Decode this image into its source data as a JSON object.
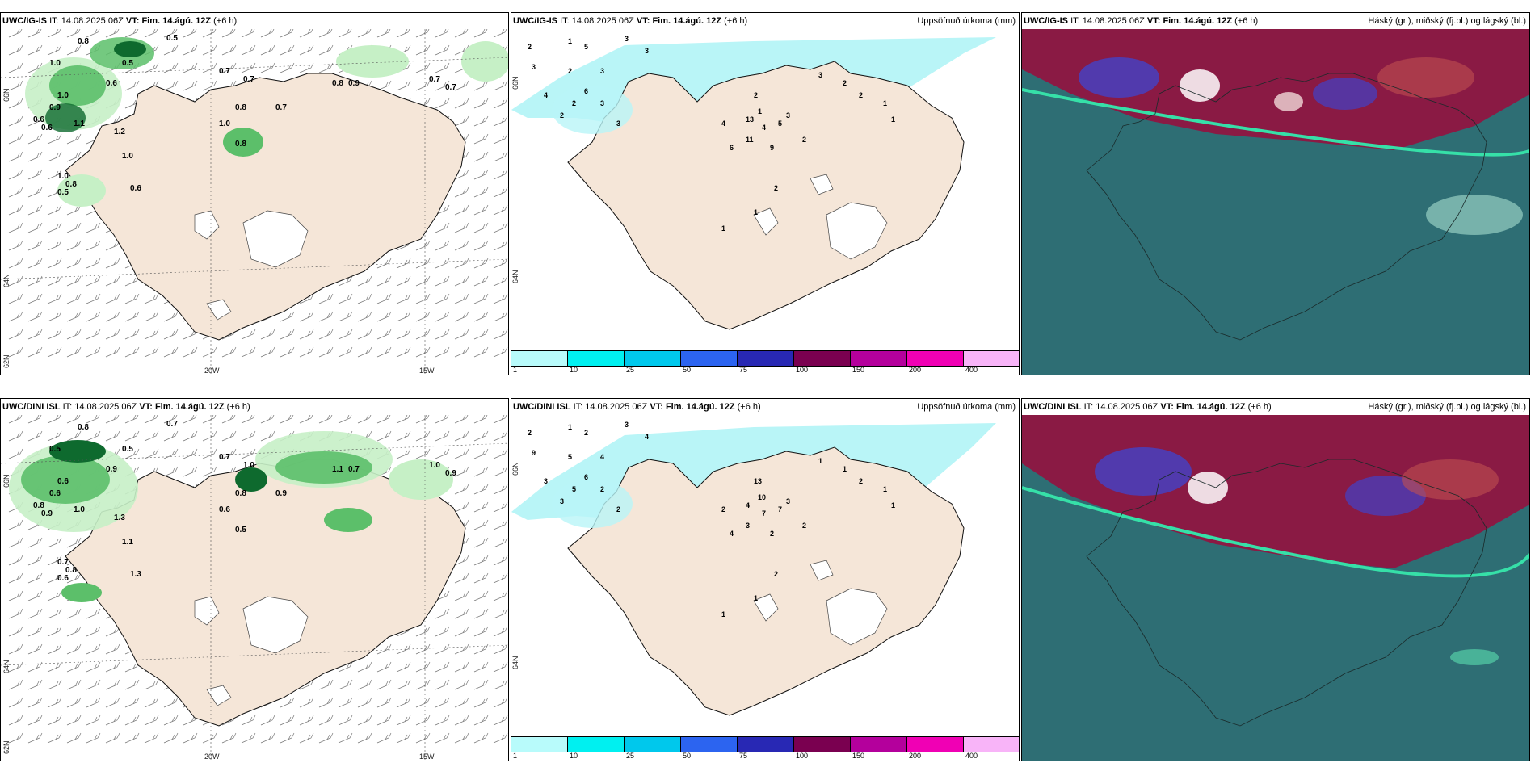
{
  "panels": {
    "p1": {
      "model": "UWC/IG-IS",
      "it_label": "IT:",
      "it": "14.08.2025 06Z",
      "vt_label": "VT:",
      "vt": "Fim. 14.ágú. 12Z",
      "lead": "(+6 h)",
      "lat1": "66N",
      "lat2": "64N",
      "lat3": "62N",
      "lon1": "20W",
      "lon2": "15W",
      "precip_labels": [
        "0.8",
        "0.5",
        "1.0",
        "0.5",
        "0.6",
        "0.7",
        "1.0",
        "0.7",
        "0.9",
        "0.8",
        "0.9",
        "0.6",
        "0.6",
        "1.1",
        "1.2",
        "0.8",
        "1.0",
        "0.7",
        "0.8",
        "1.0",
        "1.0",
        "0.8",
        "0.5",
        "0.6",
        "0.7",
        "0.7"
      ]
    },
    "p2": {
      "model": "UWC/IG-IS",
      "it_label": "IT:",
      "it": "14.08.2025 06Z",
      "vt_label": "VT:",
      "vt": "Fim. 14.ágú. 12Z",
      "lead": "(+6 h)",
      "right_title": "Uppsöfnuð úrkoma (mm)",
      "lat1": "66N",
      "lat2": "64N",
      "accum_labels": [
        "2",
        "1",
        "5",
        "3",
        "3",
        "2",
        "3",
        "4",
        "6",
        "2",
        "2",
        "3",
        "3",
        "3",
        "2",
        "1",
        "13",
        "4",
        "5",
        "3",
        "4",
        "11",
        "9",
        "6",
        "3",
        "2",
        "2",
        "1",
        "1",
        "2",
        "2",
        "1",
        "1"
      ]
    },
    "p3": {
      "model": "UWC/IG-IS",
      "it_label": "IT:",
      "it": "14.08.2025 06Z",
      "vt_label": "VT:",
      "vt": "Fim. 14.ágú. 12Z",
      "lead": "(+6 h)",
      "right_title": "Háský (gr.), miðský (fj.bl.) og lágský (bl.)"
    },
    "p4": {
      "model": "UWC/DINI ISL",
      "it_label": "IT:",
      "it": "14.08.2025 06Z",
      "vt_label": "VT:",
      "vt": "Fim. 14.ágú. 12Z",
      "lead": "(+6 h)",
      "lat1": "66N",
      "lat2": "64N",
      "lat3": "62N",
      "lon1": "20W",
      "lon2": "15W",
      "precip_labels": [
        "0.8",
        "0.7",
        "0.5",
        "0.5",
        "0.9",
        "0.7",
        "0.6",
        "1.0",
        "0.6",
        "1.1",
        "0.7",
        "0.8",
        "0.9",
        "1.0",
        "1.3",
        "0.8",
        "0.6",
        "0.9",
        "0.5",
        "1.1",
        "0.7",
        "0.8",
        "0.6",
        "1.3",
        "1.0",
        "0.9"
      ]
    },
    "p5": {
      "model": "UWC/DINI ISL",
      "it_label": "IT:",
      "it": "14.08.2025 06Z",
      "vt_label": "VT:",
      "vt": "Fim. 14.ágú. 12Z",
      "lead": "(+6 h)",
      "right_title": "Uppsöfnuð úrkoma (mm)",
      "lat1": "66N",
      "lat2": "64N",
      "accum_labels": [
        "2",
        "1",
        "2",
        "3",
        "9",
        "5",
        "4",
        "3",
        "6",
        "5",
        "3",
        "2",
        "2",
        "4",
        "13",
        "10",
        "4",
        "7",
        "7",
        "3",
        "2",
        "3",
        "2",
        "4",
        "1",
        "1",
        "2",
        "1",
        "1",
        "2",
        "2",
        "1",
        "1"
      ]
    },
    "p6": {
      "model": "UWC/DINI ISL",
      "it_label": "IT:",
      "it": "14.08.2025 06Z",
      "vt_label": "VT:",
      "vt": "Fim. 14.ágú. 12Z",
      "lead": "(+6 h)",
      "right_title": "Háský (gr.), miðský (fj.bl.) og lágský (bl.)"
    }
  },
  "colorbar": {
    "labels": [
      "1",
      "10",
      "25",
      "50",
      "75",
      "100",
      "150",
      "200",
      "400"
    ],
    "colors": [
      "#b8fbfb",
      "#00f0f0",
      "#00c8ec",
      "#2c64f0",
      "#2828b4",
      "#7a0050",
      "#b4009c",
      "#f000b4",
      "#f8b4f8"
    ]
  },
  "colors": {
    "land": "#f5e6d8",
    "glacier": "#ffffff",
    "precip_light": "#c6f0c6",
    "precip_mid": "#5cbf6a",
    "precip_dark": "#0e6a2e",
    "accum": "#b9f5f7",
    "cloud_low": "#2e6e74",
    "cloud_mid": "#4242c8",
    "cloud_high": "#8a1a44"
  }
}
